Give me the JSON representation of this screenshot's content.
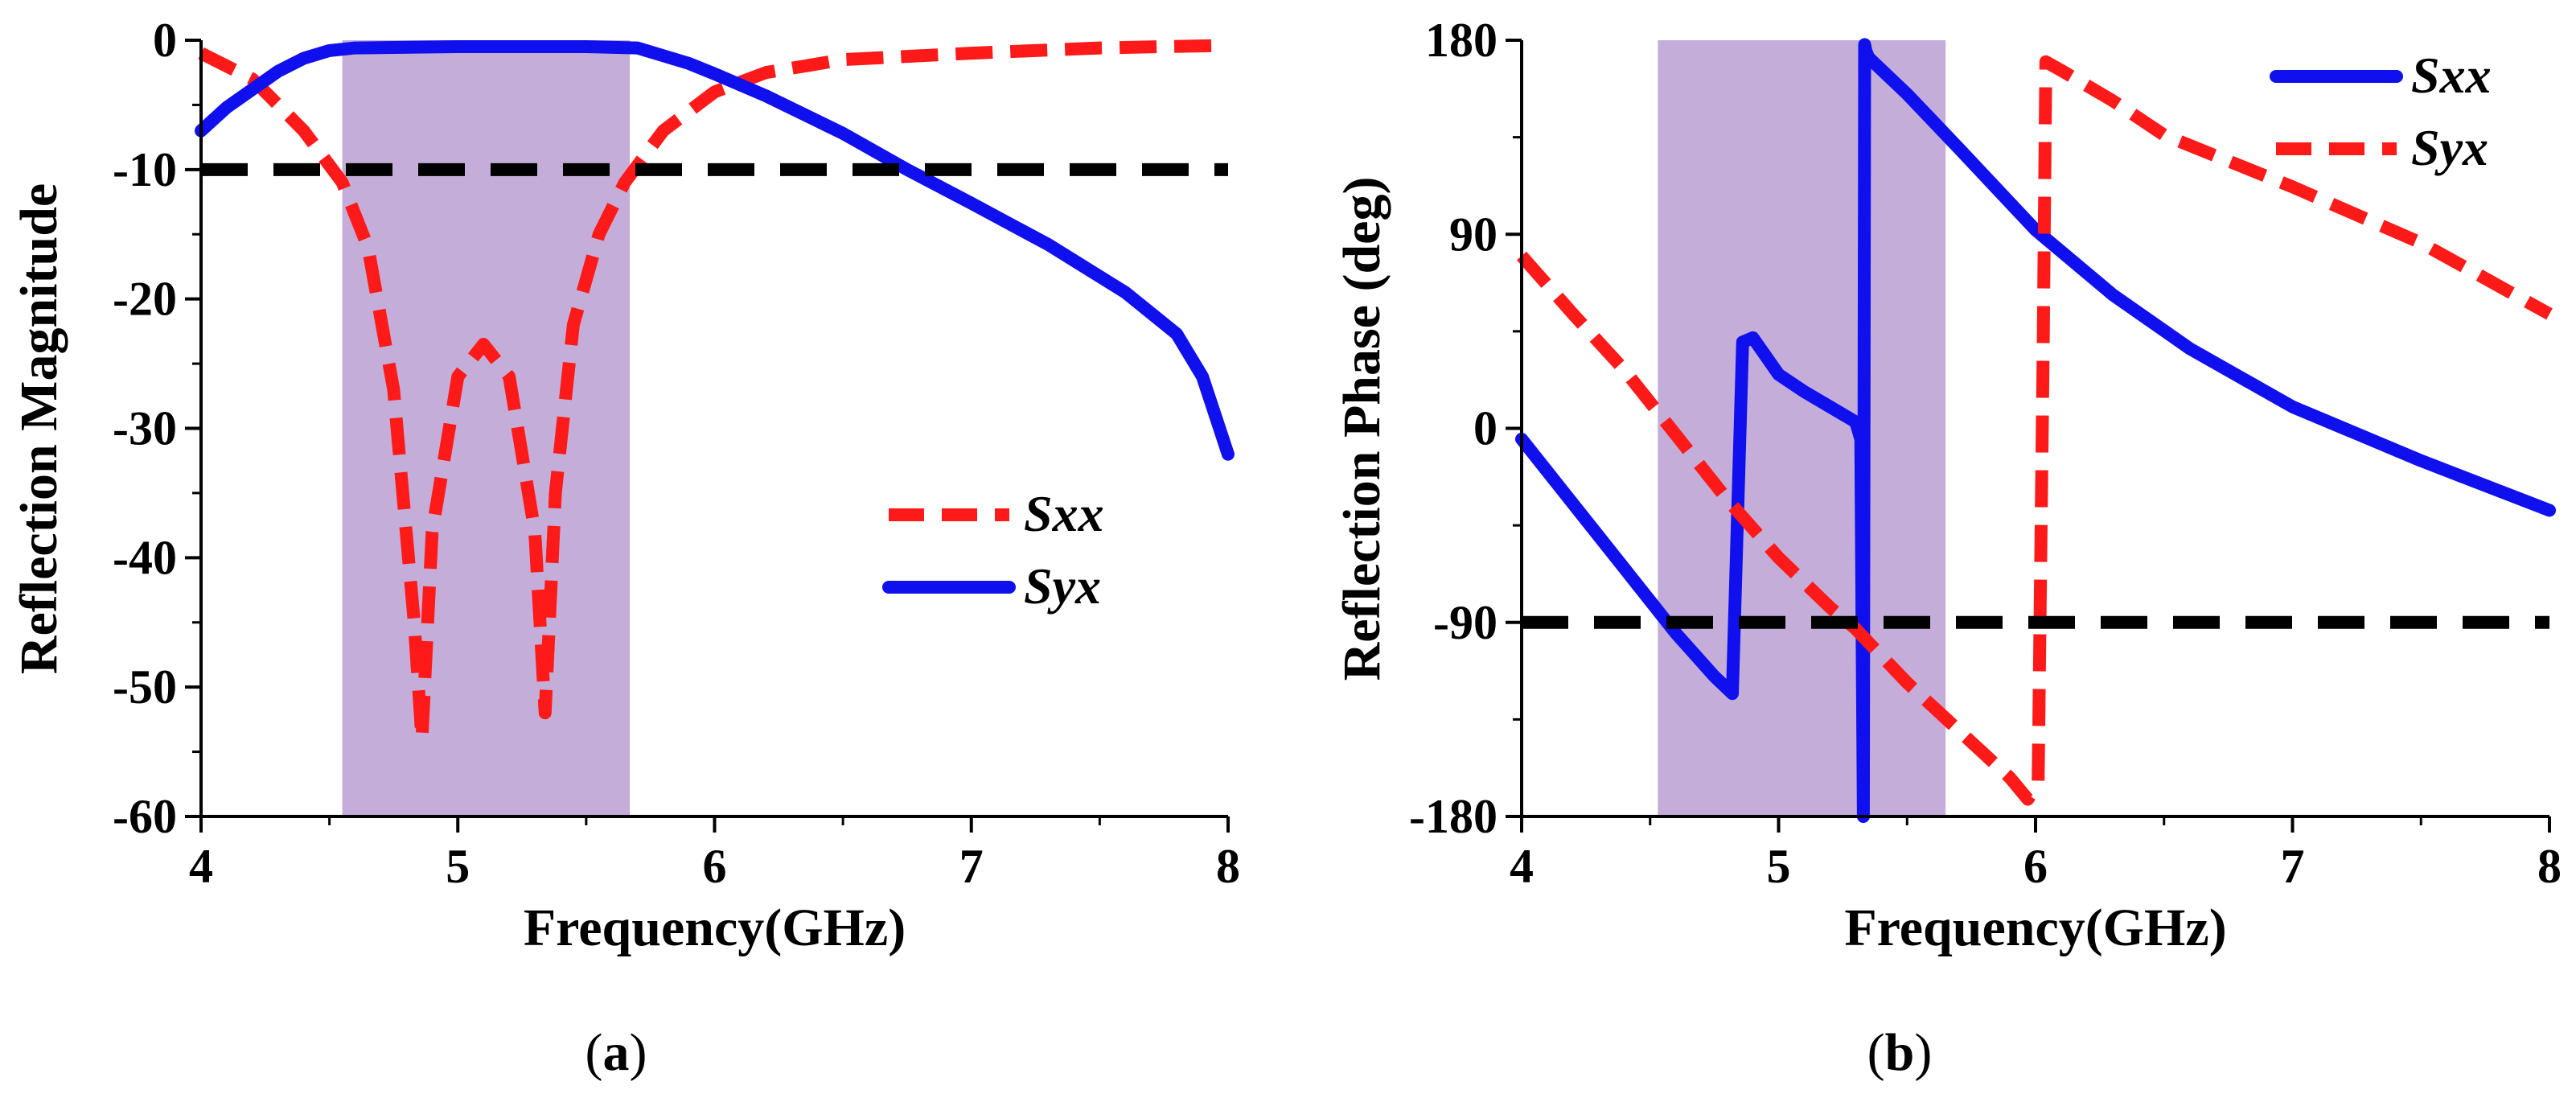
{
  "chart_data": [
    {
      "type": "line",
      "caption": {
        "open": "(",
        "letter": "a",
        "close": ")"
      },
      "xlabel": "Frequency(GHz)",
      "ylabel": "Reflection Magnitude",
      "xlim": [
        4,
        8
      ],
      "ylim": [
        -60,
        0
      ],
      "xticks": [
        4,
        5,
        6,
        7,
        8
      ],
      "yticks": [
        0,
        -10,
        -20,
        -30,
        -40,
        -50,
        -60
      ],
      "highlight_band": {
        "x_start": 4.55,
        "x_end": 5.67,
        "color": "#c4aed9"
      },
      "reference_lines": [
        {
          "y": -10,
          "color": "#000000",
          "style": "dashed"
        }
      ],
      "legend_position": "center-right",
      "series": [
        {
          "name": "Sxx",
          "color": "#ff1a1a",
          "style": "dashed",
          "x": [
            4.0,
            4.2,
            4.4,
            4.55,
            4.65,
            4.75,
            4.83,
            4.86,
            4.9,
            5.0,
            5.1,
            5.2,
            5.3,
            5.34,
            5.38,
            5.45,
            5.55,
            5.65,
            5.8,
            6.0,
            6.2,
            6.5,
            7.0,
            7.5,
            8.0
          ],
          "y": [
            -1,
            -3,
            -7,
            -11,
            -16,
            -27,
            -45,
            -54,
            -38,
            -26,
            -23.5,
            -26,
            -38,
            -52,
            -35,
            -22,
            -15,
            -11,
            -7,
            -4,
            -2.5,
            -1.5,
            -1,
            -0.6,
            -0.4
          ]
        },
        {
          "name": "Syx",
          "color": "#1010ee",
          "style": "solid",
          "x": [
            4.0,
            4.1,
            4.2,
            4.3,
            4.4,
            4.5,
            4.6,
            5.0,
            5.5,
            5.7,
            5.9,
            6.0,
            6.2,
            6.5,
            6.75,
            7.0,
            7.3,
            7.6,
            7.8,
            7.9,
            8.0
          ],
          "y": [
            -7,
            -5.2,
            -3.8,
            -2.4,
            -1.4,
            -0.8,
            -0.6,
            -0.5,
            -0.5,
            -0.6,
            -1.8,
            -2.6,
            -4.3,
            -7.2,
            -10,
            -12.6,
            -15.8,
            -19.5,
            -22.7,
            -26,
            -32
          ]
        }
      ]
    },
    {
      "type": "line",
      "caption": {
        "open": "(",
        "letter": "b",
        "close": ")"
      },
      "xlabel": "Frequency(GHz)",
      "ylabel": "Reflection Phase (deg)",
      "xlim": [
        4,
        8
      ],
      "ylim": [
        -180,
        180
      ],
      "xticks": [
        4,
        5,
        6,
        7,
        8
      ],
      "yticks": [
        180,
        90,
        0,
        -90,
        -180
      ],
      "highlight_band": {
        "x_start": 4.53,
        "x_end": 5.65,
        "color": "#c4aed9"
      },
      "reference_lines": [
        {
          "y": -90,
          "color": "#000000",
          "style": "dashed"
        }
      ],
      "legend_position": "top-right",
      "series": [
        {
          "name": "Sxx",
          "color": "#1010ee",
          "style": "solid",
          "x": [
            4.0,
            4.2,
            4.4,
            4.6,
            4.75,
            4.82,
            4.86,
            4.9,
            5.0,
            5.1,
            5.2,
            5.3,
            5.32,
            5.33,
            5.335,
            5.34,
            5.35,
            5.5,
            5.7,
            6.0,
            6.3,
            6.6,
            7.0,
            7.5,
            8.0
          ],
          "y": [
            -5,
            -35,
            -65,
            -95,
            -115,
            -123,
            40,
            42,
            25,
            17,
            10,
            3,
            -5,
            -180,
            178,
            175,
            172,
            155,
            130,
            92,
            62,
            37,
            10,
            -15,
            -38
          ]
        },
        {
          "name": "Syx",
          "color": "#ff1a1a",
          "style": "dashed",
          "x": [
            4.0,
            4.2,
            4.4,
            4.6,
            4.8,
            5.0,
            5.2,
            5.3,
            5.5,
            5.7,
            5.9,
            5.97,
            6.01,
            6.03,
            6.04,
            6.1,
            6.3,
            6.5,
            7.0,
            7.5,
            8.0
          ],
          "y": [
            80,
            53,
            27,
            -3,
            -33,
            -60,
            -83,
            -93,
            -118,
            -140,
            -162,
            -172,
            -165,
            40,
            170,
            166,
            152,
            136,
            112,
            86,
            53
          ]
        }
      ]
    }
  ]
}
